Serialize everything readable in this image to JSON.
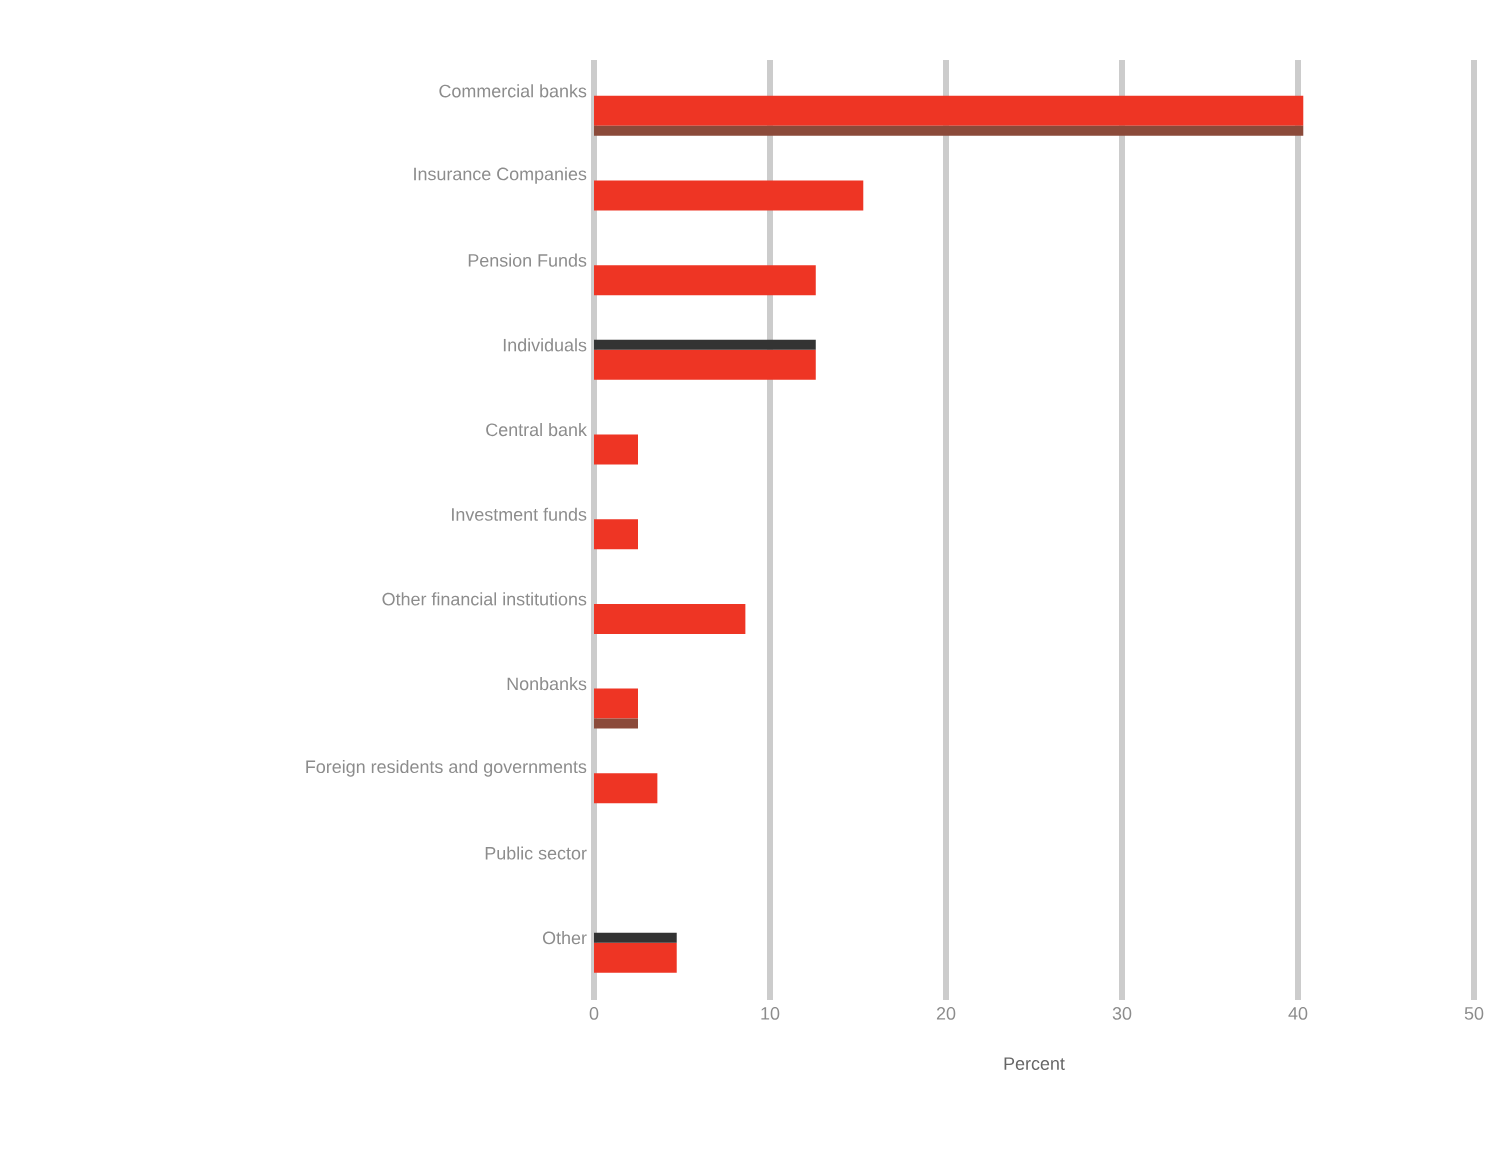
{
  "chart_data": {
    "type": "bar",
    "orientation": "horizontal",
    "categories": [
      "Commercial banks",
      "Insurance Companies",
      "Pension Funds",
      "Individuals",
      "Central bank",
      "Investment funds",
      "Other financial institutions",
      "Nonbanks",
      "Foreign residents and governments",
      "Public sector",
      "Other"
    ],
    "series": [
      {
        "color": "#ee3524",
        "values": [
          40.3,
          15.3,
          12.6,
          12.6,
          2.5,
          2.5,
          8.6,
          2.5,
          3.6,
          null,
          4.7
        ]
      },
      {
        "color": "#8b4a3a",
        "values": [
          40.3,
          null,
          null,
          null,
          null,
          null,
          null,
          2.5,
          null,
          null,
          null
        ]
      },
      {
        "color": "#333333",
        "values": [
          null,
          null,
          null,
          12.6,
          null,
          null,
          null,
          null,
          null,
          null,
          4.7
        ]
      }
    ],
    "xlim": [
      0,
      50
    ],
    "xticks": [
      0,
      10,
      20,
      30,
      40,
      50
    ],
    "xlabel": "Percent",
    "grid": "x"
  }
}
